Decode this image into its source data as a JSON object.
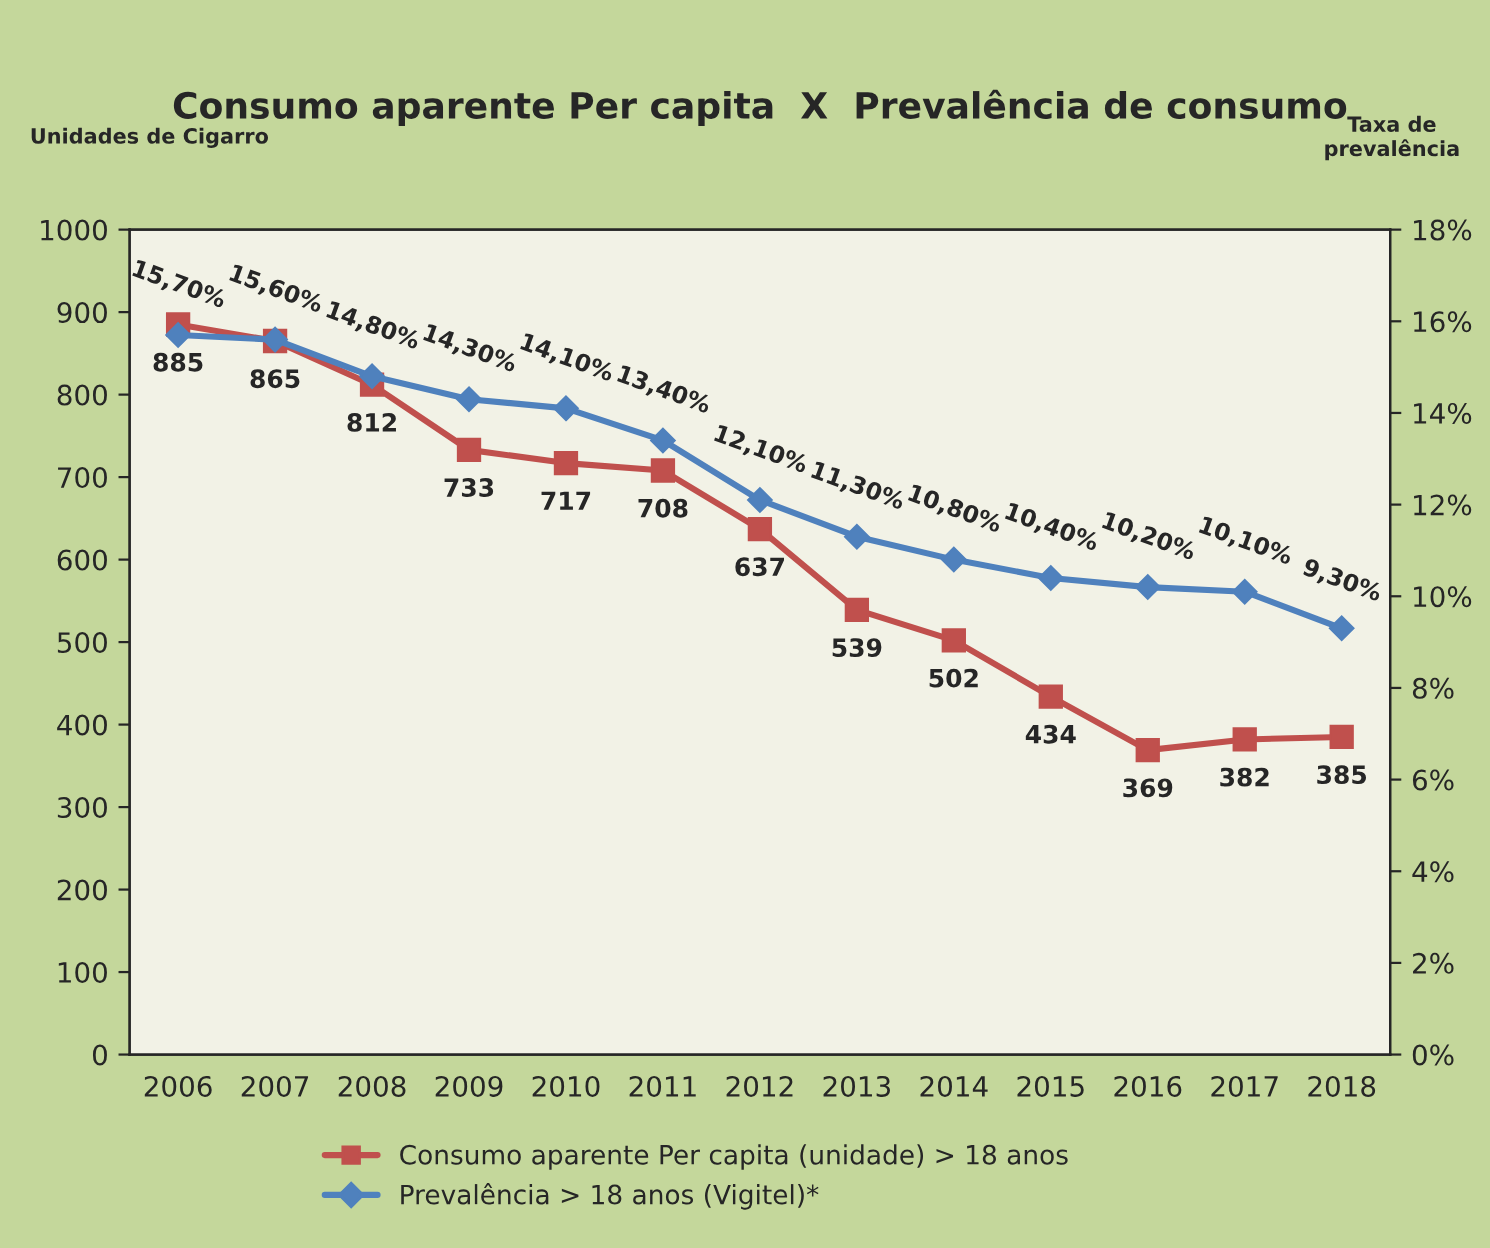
{
  "chart_data": {
    "type": "line",
    "title": "Consumo aparente Per capita  X  Prevalência de consumo",
    "ylabel": "Unidades de Cigarro",
    "y2label": "Taxa de\nprevalência",
    "categories": [
      "2006",
      "2007",
      "2008",
      "2009",
      "2010",
      "2011",
      "2012",
      "2013",
      "2014",
      "2015",
      "2016",
      "2017",
      "2018"
    ],
    "series": [
      {
        "name": "Consumo aparente Per capita (unidade) > 18 anos",
        "color": "#c0504d",
        "marker": "square",
        "values": [
          885,
          865,
          812,
          733,
          717,
          708,
          637,
          539,
          502,
          434,
          369,
          382,
          385
        ],
        "value_labels": [
          "885",
          "865",
          "812",
          "733",
          "717",
          "708",
          "637",
          "539",
          "502",
          "434",
          "369",
          "382",
          "385"
        ]
      },
      {
        "name": "Prevalência > 18 anos (Vigitel)*",
        "color": "#4f81bd",
        "marker": "diamond",
        "axis": "y2",
        "values": [
          15.7,
          15.6,
          14.8,
          14.3,
          14.1,
          13.4,
          12.1,
          11.3,
          10.8,
          10.4,
          10.2,
          10.1,
          9.3
        ],
        "value_labels": [
          "15,70%",
          "15,60%",
          "14,80%",
          "14,30%",
          "14,10%",
          "13,40%",
          "12,10%",
          "11,30%",
          "10,80%",
          "10,40%",
          "10,20%",
          "10,10%",
          "9,30%"
        ]
      }
    ],
    "ylim": [
      0,
      1000
    ],
    "yticks": [
      0,
      100,
      200,
      300,
      400,
      500,
      600,
      700,
      800,
      900,
      1000
    ],
    "y2lim": [
      0,
      18
    ],
    "y2ticks": [
      {
        "value": 0,
        "label": "0%"
      },
      {
        "value": 2,
        "label": "2%"
      },
      {
        "value": 4,
        "label": "4%"
      },
      {
        "value": 6,
        "label": "6%"
      },
      {
        "value": 8,
        "label": "8%"
      },
      {
        "value": 10,
        "label": "10%"
      },
      {
        "value": 12,
        "label": "12%"
      },
      {
        "value": 14,
        "label": "14%"
      },
      {
        "value": 16,
        "label": "16%"
      },
      {
        "value": 18,
        "label": "18%"
      }
    ],
    "legend": "bottom",
    "grid": false,
    "line_style": "solid"
  }
}
